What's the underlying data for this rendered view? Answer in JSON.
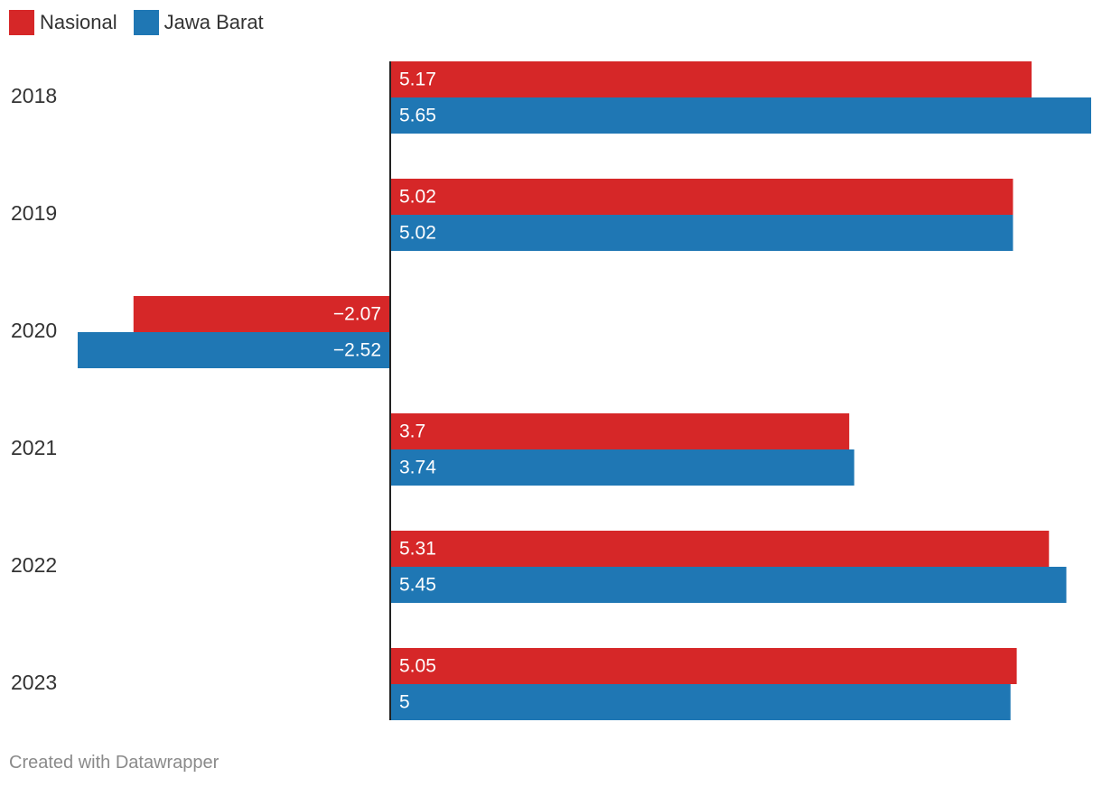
{
  "colors": {
    "nasional": "#d62728",
    "jawa_barat": "#1f77b4",
    "axis": "#222222",
    "label_text": "#333333",
    "value_text": "#ffffff"
  },
  "legend": [
    {
      "label": "Nasional",
      "color": "#d62728"
    },
    {
      "label": "Jawa Barat",
      "color": "#1f77b4"
    }
  ],
  "footer": {
    "credit": "Created with Datawrapper"
  },
  "chart_data": {
    "type": "bar",
    "orientation": "horizontal",
    "title": "",
    "xlabel": "",
    "ylabel": "",
    "xlim": [
      -2.52,
      5.65
    ],
    "grid": false,
    "legend_position": "top-left",
    "categories": [
      "2018",
      "2019",
      "2020",
      "2021",
      "2022",
      "2023"
    ],
    "series": [
      {
        "name": "Nasional",
        "color": "#d62728",
        "values": [
          5.17,
          5.02,
          -2.07,
          3.7,
          5.31,
          5.05
        ],
        "labels": [
          "5.17",
          "5.02",
          "−2.07",
          "3.7",
          "5.31",
          "5.05"
        ]
      },
      {
        "name": "Jawa Barat",
        "color": "#1f77b4",
        "values": [
          5.65,
          5.02,
          -2.52,
          3.74,
          5.45,
          5
        ],
        "labels": [
          "5.65",
          "5.02",
          "−2.52",
          "3.74",
          "5.45",
          "5"
        ]
      }
    ]
  }
}
